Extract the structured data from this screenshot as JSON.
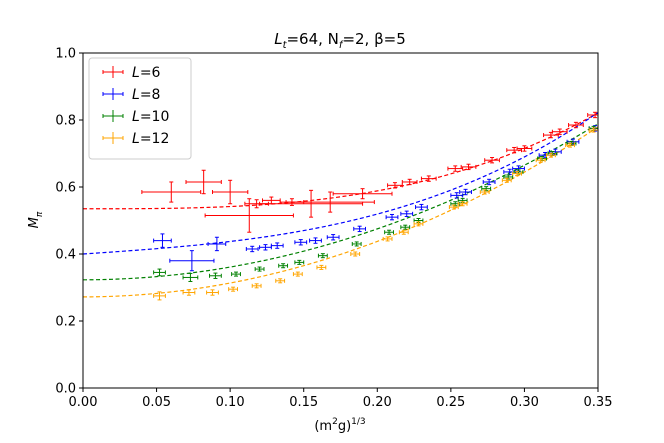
{
  "chart_data": {
    "type": "scatter",
    "title": {
      "pre": "L",
      "sub": "t",
      "post": "=64, N",
      "sub2": "f",
      "post2": "=2, β=5"
    },
    "xlabel": {
      "pre": "(m",
      "sup": "2",
      "mid": "g)",
      "sup2": "1/3"
    },
    "ylabel": {
      "main": "M",
      "sub": "π"
    },
    "xlim": [
      0.0,
      0.35
    ],
    "ylim": [
      0.0,
      1.0
    ],
    "xticks": [
      "0.00",
      "0.05",
      "0.10",
      "0.15",
      "0.20",
      "0.25",
      "0.30",
      "0.35"
    ],
    "xtick_values": [
      0.0,
      0.05,
      0.1,
      0.15,
      0.2,
      0.25,
      0.3,
      0.35
    ],
    "yticks": [
      "0.0",
      "0.2",
      "0.4",
      "0.6",
      "0.8",
      "1.0"
    ],
    "ytick_values": [
      0.0,
      0.2,
      0.4,
      0.6,
      0.8,
      1.0
    ],
    "grid": false,
    "legend_position": "top-left",
    "series": [
      {
        "name": {
          "pre": "L",
          "post": "=6"
        },
        "color": "#ff0000",
        "fit": {
          "a": 0.535,
          "b": 0.0,
          "c": 0.0,
          "d": 6.67
        },
        "points": [
          {
            "x": 0.06,
            "y": 0.585,
            "xerr": 0.02,
            "yerr": 0.03
          },
          {
            "x": 0.082,
            "y": 0.615,
            "xerr": 0.012,
            "yerr": 0.035
          },
          {
            "x": 0.1,
            "y": 0.585,
            "xerr": 0.012,
            "yerr": 0.035
          },
          {
            "x": 0.113,
            "y": 0.515,
            "xerr": 0.03,
            "yerr": 0.05
          },
          {
            "x": 0.118,
            "y": 0.55,
            "xerr": 0.008,
            "yerr": 0.012
          },
          {
            "x": 0.128,
            "y": 0.56,
            "xerr": 0.006,
            "yerr": 0.01
          },
          {
            "x": 0.142,
            "y": 0.555,
            "xerr": 0.008,
            "yerr": 0.01
          },
          {
            "x": 0.155,
            "y": 0.55,
            "xerr": 0.035,
            "yerr": 0.04
          },
          {
            "x": 0.168,
            "y": 0.555,
            "xerr": 0.03,
            "yerr": 0.03
          },
          {
            "x": 0.19,
            "y": 0.58,
            "xerr": 0.02,
            "yerr": 0.015
          },
          {
            "x": 0.212,
            "y": 0.605,
            "xerr": 0.005,
            "yerr": 0.008
          },
          {
            "x": 0.222,
            "y": 0.615,
            "xerr": 0.005,
            "yerr": 0.008
          },
          {
            "x": 0.235,
            "y": 0.625,
            "xerr": 0.005,
            "yerr": 0.008
          },
          {
            "x": 0.253,
            "y": 0.655,
            "xerr": 0.005,
            "yerr": 0.008
          },
          {
            "x": 0.262,
            "y": 0.66,
            "xerr": 0.005,
            "yerr": 0.008
          },
          {
            "x": 0.278,
            "y": 0.68,
            "xerr": 0.005,
            "yerr": 0.008
          },
          {
            "x": 0.293,
            "y": 0.71,
            "xerr": 0.005,
            "yerr": 0.008
          },
          {
            "x": 0.3,
            "y": 0.715,
            "xerr": 0.005,
            "yerr": 0.008
          },
          {
            "x": 0.318,
            "y": 0.755,
            "xerr": 0.005,
            "yerr": 0.008
          },
          {
            "x": 0.324,
            "y": 0.765,
            "xerr": 0.005,
            "yerr": 0.008
          },
          {
            "x": 0.335,
            "y": 0.785,
            "xerr": 0.005,
            "yerr": 0.008
          },
          {
            "x": 0.348,
            "y": 0.815,
            "xerr": 0.005,
            "yerr": 0.008
          }
        ]
      },
      {
        "name": {
          "pre": "L",
          "post": "=8"
        },
        "color": "#0000ff",
        "fit": {
          "a": 0.4,
          "b": 0.3,
          "c": 0.0,
          "d": 7.4
        },
        "points": [
          {
            "x": 0.054,
            "y": 0.44,
            "xerr": 0.006,
            "yerr": 0.02
          },
          {
            "x": 0.074,
            "y": 0.38,
            "xerr": 0.015,
            "yerr": 0.03
          },
          {
            "x": 0.091,
            "y": 0.43,
            "xerr": 0.006,
            "yerr": 0.02
          },
          {
            "x": 0.115,
            "y": 0.415,
            "xerr": 0.004,
            "yerr": 0.008
          },
          {
            "x": 0.124,
            "y": 0.42,
            "xerr": 0.004,
            "yerr": 0.008
          },
          {
            "x": 0.132,
            "y": 0.425,
            "xerr": 0.004,
            "yerr": 0.008
          },
          {
            "x": 0.148,
            "y": 0.435,
            "xerr": 0.004,
            "yerr": 0.008
          },
          {
            "x": 0.158,
            "y": 0.44,
            "xerr": 0.004,
            "yerr": 0.008
          },
          {
            "x": 0.17,
            "y": 0.45,
            "xerr": 0.004,
            "yerr": 0.008
          },
          {
            "x": 0.188,
            "y": 0.475,
            "xerr": 0.004,
            "yerr": 0.008
          },
          {
            "x": 0.21,
            "y": 0.51,
            "xerr": 0.004,
            "yerr": 0.008
          },
          {
            "x": 0.22,
            "y": 0.52,
            "xerr": 0.004,
            "yerr": 0.008
          },
          {
            "x": 0.23,
            "y": 0.54,
            "xerr": 0.004,
            "yerr": 0.008
          },
          {
            "x": 0.254,
            "y": 0.575,
            "xerr": 0.004,
            "yerr": 0.008
          },
          {
            "x": 0.26,
            "y": 0.585,
            "xerr": 0.004,
            "yerr": 0.008
          },
          {
            "x": 0.276,
            "y": 0.615,
            "xerr": 0.004,
            "yerr": 0.008
          },
          {
            "x": 0.29,
            "y": 0.645,
            "xerr": 0.004,
            "yerr": 0.008
          },
          {
            "x": 0.296,
            "y": 0.655,
            "xerr": 0.004,
            "yerr": 0.008
          },
          {
            "x": 0.314,
            "y": 0.695,
            "xerr": 0.004,
            "yerr": 0.008
          },
          {
            "x": 0.321,
            "y": 0.705,
            "xerr": 0.004,
            "yerr": 0.008
          },
          {
            "x": 0.333,
            "y": 0.735,
            "xerr": 0.004,
            "yerr": 0.008
          },
          {
            "x": 0.348,
            "y": 0.775,
            "xerr": 0.004,
            "yerr": 0.008
          }
        ]
      },
      {
        "name": {
          "pre": "L",
          "post": "=10"
        },
        "color": "#008000",
        "fit": {
          "a": 0.323,
          "b": 0.0,
          "c": 3.8,
          "d": 0.0
        },
        "points": [
          {
            "x": 0.052,
            "y": 0.345,
            "xerr": 0.004,
            "yerr": 0.01
          },
          {
            "x": 0.073,
            "y": 0.33,
            "xerr": 0.005,
            "yerr": 0.012
          },
          {
            "x": 0.09,
            "y": 0.335,
            "xerr": 0.004,
            "yerr": 0.008
          },
          {
            "x": 0.104,
            "y": 0.34,
            "xerr": 0.003,
            "yerr": 0.006
          },
          {
            "x": 0.12,
            "y": 0.355,
            "xerr": 0.003,
            "yerr": 0.006
          },
          {
            "x": 0.136,
            "y": 0.365,
            "xerr": 0.003,
            "yerr": 0.006
          },
          {
            "x": 0.147,
            "y": 0.375,
            "xerr": 0.003,
            "yerr": 0.006
          },
          {
            "x": 0.163,
            "y": 0.395,
            "xerr": 0.003,
            "yerr": 0.006
          },
          {
            "x": 0.186,
            "y": 0.43,
            "xerr": 0.003,
            "yerr": 0.006
          },
          {
            "x": 0.208,
            "y": 0.465,
            "xerr": 0.003,
            "yerr": 0.006
          },
          {
            "x": 0.219,
            "y": 0.48,
            "xerr": 0.003,
            "yerr": 0.006
          },
          {
            "x": 0.228,
            "y": 0.5,
            "xerr": 0.003,
            "yerr": 0.006
          },
          {
            "x": 0.253,
            "y": 0.55,
            "xerr": 0.003,
            "yerr": 0.006
          },
          {
            "x": 0.258,
            "y": 0.56,
            "xerr": 0.003,
            "yerr": 0.006
          },
          {
            "x": 0.274,
            "y": 0.595,
            "xerr": 0.003,
            "yerr": 0.006
          },
          {
            "x": 0.289,
            "y": 0.63,
            "xerr": 0.003,
            "yerr": 0.006
          },
          {
            "x": 0.296,
            "y": 0.645,
            "xerr": 0.003,
            "yerr": 0.006
          },
          {
            "x": 0.312,
            "y": 0.685,
            "xerr": 0.003,
            "yerr": 0.006
          },
          {
            "x": 0.319,
            "y": 0.7,
            "xerr": 0.003,
            "yerr": 0.006
          },
          {
            "x": 0.332,
            "y": 0.73,
            "xerr": 0.003,
            "yerr": 0.006
          },
          {
            "x": 0.347,
            "y": 0.775,
            "xerr": 0.003,
            "yerr": 0.006
          }
        ]
      },
      {
        "name": {
          "pre": "L",
          "post": "=12"
        },
        "color": "#ffa500",
        "fit": {
          "a": 0.272,
          "b": 0.0,
          "c": 4.14,
          "d": 0.0
        },
        "points": [
          {
            "x": 0.052,
            "y": 0.275,
            "xerr": 0.004,
            "yerr": 0.012
          },
          {
            "x": 0.072,
            "y": 0.285,
            "xerr": 0.004,
            "yerr": 0.008
          },
          {
            "x": 0.088,
            "y": 0.285,
            "xerr": 0.004,
            "yerr": 0.008
          },
          {
            "x": 0.102,
            "y": 0.295,
            "xerr": 0.003,
            "yerr": 0.006
          },
          {
            "x": 0.118,
            "y": 0.305,
            "xerr": 0.003,
            "yerr": 0.006
          },
          {
            "x": 0.134,
            "y": 0.32,
            "xerr": 0.003,
            "yerr": 0.006
          },
          {
            "x": 0.146,
            "y": 0.34,
            "xerr": 0.003,
            "yerr": 0.006
          },
          {
            "x": 0.162,
            "y": 0.36,
            "xerr": 0.003,
            "yerr": 0.006
          },
          {
            "x": 0.185,
            "y": 0.4,
            "xerr": 0.003,
            "yerr": 0.006
          },
          {
            "x": 0.207,
            "y": 0.445,
            "xerr": 0.003,
            "yerr": 0.006
          },
          {
            "x": 0.218,
            "y": 0.465,
            "xerr": 0.003,
            "yerr": 0.006
          },
          {
            "x": 0.228,
            "y": 0.49,
            "xerr": 0.003,
            "yerr": 0.006
          },
          {
            "x": 0.252,
            "y": 0.54,
            "xerr": 0.003,
            "yerr": 0.006
          },
          {
            "x": 0.258,
            "y": 0.55,
            "xerr": 0.003,
            "yerr": 0.006
          },
          {
            "x": 0.273,
            "y": 0.585,
            "xerr": 0.003,
            "yerr": 0.006
          },
          {
            "x": 0.288,
            "y": 0.62,
            "xerr": 0.003,
            "yerr": 0.006
          },
          {
            "x": 0.295,
            "y": 0.64,
            "xerr": 0.003,
            "yerr": 0.006
          },
          {
            "x": 0.311,
            "y": 0.68,
            "xerr": 0.003,
            "yerr": 0.006
          },
          {
            "x": 0.318,
            "y": 0.695,
            "xerr": 0.003,
            "yerr": 0.006
          },
          {
            "x": 0.331,
            "y": 0.725,
            "xerr": 0.003,
            "yerr": 0.006
          },
          {
            "x": 0.347,
            "y": 0.77,
            "xerr": 0.003,
            "yerr": 0.006
          }
        ]
      }
    ]
  }
}
